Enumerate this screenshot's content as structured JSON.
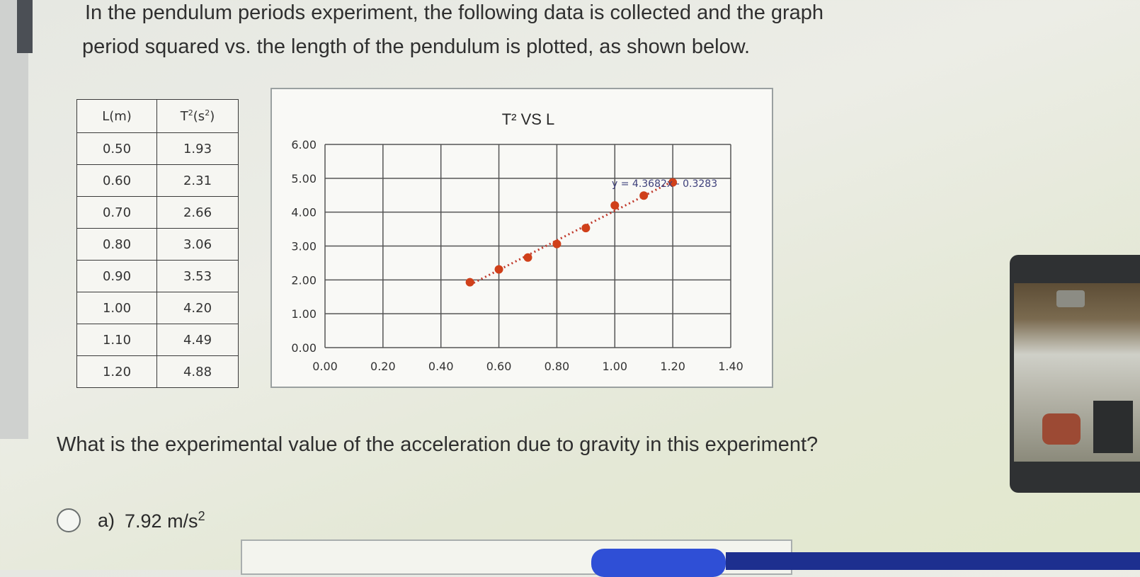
{
  "intro": {
    "line1": "In the pendulum periods experiment, the following data is collected and the graph",
    "line2": "period squared vs. the length of the pendulum is plotted, as shown below."
  },
  "table": {
    "header_l": "L(m)",
    "header_t": "T",
    "header_t_sup1": "2",
    "header_t_unit": "(s",
    "header_t_sup2": "2",
    "header_t_close": ")",
    "rows": [
      {
        "l": "0.50",
        "t": "1.93"
      },
      {
        "l": "0.60",
        "t": "2.31"
      },
      {
        "l": "0.70",
        "t": "2.66"
      },
      {
        "l": "0.80",
        "t": "3.06"
      },
      {
        "l": "0.90",
        "t": "3.53"
      },
      {
        "l": "1.00",
        "t": "4.20"
      },
      {
        "l": "1.10",
        "t": "4.49"
      },
      {
        "l": "1.20",
        "t": "4.88"
      }
    ]
  },
  "chart_data": {
    "type": "scatter",
    "title": "T² VS L",
    "xlabel": "",
    "ylabel": "",
    "x": [
      0.5,
      0.6,
      0.7,
      0.8,
      0.9,
      1.0,
      1.1,
      1.2
    ],
    "y": [
      1.93,
      2.31,
      2.66,
      3.06,
      3.53,
      4.2,
      4.49,
      4.88
    ],
    "xlim": [
      0,
      1.4
    ],
    "ylim": [
      0,
      6
    ],
    "xticks": [
      "0.00",
      "0.20",
      "0.40",
      "0.60",
      "0.80",
      "1.00",
      "1.20",
      "1.40"
    ],
    "yticks": [
      "0.00",
      "1.00",
      "2.00",
      "3.00",
      "4.00",
      "5.00",
      "6.00"
    ],
    "trendline": {
      "slope": 4.3682,
      "intercept": -0.3283,
      "style": "dotted",
      "label": "y = 4.3682x - 0.3283"
    },
    "grid": true,
    "marker_color": "#d0401a",
    "trend_color": "#c0392b"
  },
  "question": "What is the experimental value of the acceleration due to gravity in this experiment?",
  "option_a": {
    "letter": "a)",
    "value": "7.92 m/s",
    "sup": "2"
  }
}
